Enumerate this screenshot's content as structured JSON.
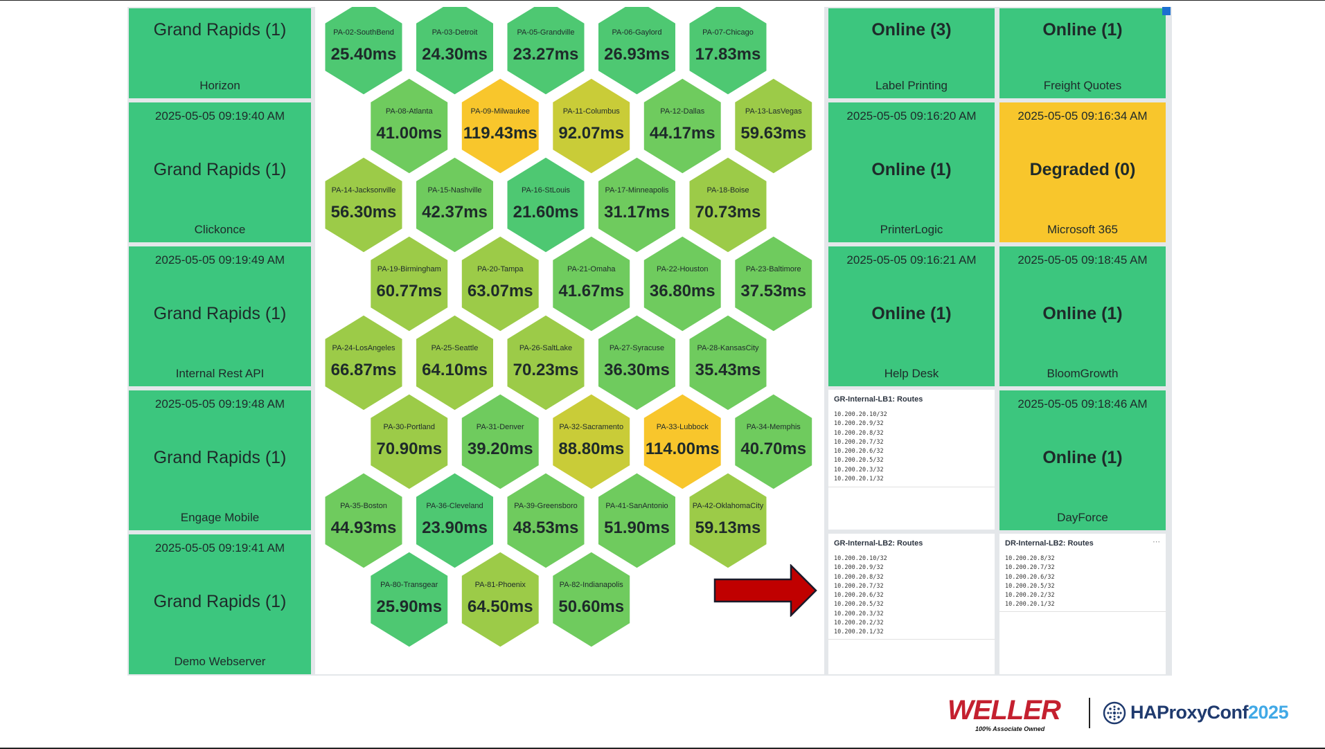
{
  "colors": {
    "green": "#3cc67e",
    "yellow": "#f8c62c",
    "panel_bg": "#e4e7ea",
    "hex_green": "#4ec872",
    "hex_lightgreen": "#6fcb5e",
    "hex_yellowgreen": "#9ccb48",
    "hex_olive": "#c9cc38",
    "hex_yellow": "#f8c62c",
    "arrow_red": "#c00000"
  },
  "left_tiles": [
    {
      "timestamp": "",
      "status": "Grand Rapids (1)",
      "label": "Horizon"
    },
    {
      "timestamp": "2025-05-05 09:19:40 AM",
      "status": "Grand Rapids (1)",
      "label": "Clickonce"
    },
    {
      "timestamp": "2025-05-05 09:19:49 AM",
      "status": "Grand Rapids (1)",
      "label": "Internal Rest API"
    },
    {
      "timestamp": "2025-05-05 09:19:48 AM",
      "status": "Grand Rapids (1)",
      "label": "Engage Mobile"
    },
    {
      "timestamp": "2025-05-05 09:19:41 AM",
      "status": "Grand Rapids (1)",
      "label": "Demo Webserver"
    }
  ],
  "hexes": [
    {
      "name": "PA-02-SouthBend",
      "value": "25.40ms",
      "level": "green"
    },
    {
      "name": "PA-03-Detroit",
      "value": "24.30ms",
      "level": "green"
    },
    {
      "name": "PA-05-Grandville",
      "value": "23.27ms",
      "level": "green"
    },
    {
      "name": "PA-06-Gaylord",
      "value": "26.93ms",
      "level": "green"
    },
    {
      "name": "PA-07-Chicago",
      "value": "17.83ms",
      "level": "green"
    },
    {
      "name": "PA-08-Atlanta",
      "value": "41.00ms",
      "level": "lightgreen"
    },
    {
      "name": "PA-09-Milwaukee",
      "value": "119.43ms",
      "level": "yellow"
    },
    {
      "name": "PA-11-Columbus",
      "value": "92.07ms",
      "level": "olive"
    },
    {
      "name": "PA-12-Dallas",
      "value": "44.17ms",
      "level": "lightgreen"
    },
    {
      "name": "PA-13-LasVegas",
      "value": "59.63ms",
      "level": "yellowgreen"
    },
    {
      "name": "PA-14-Jacksonville",
      "value": "56.30ms",
      "level": "yellowgreen"
    },
    {
      "name": "PA-15-Nashville",
      "value": "42.37ms",
      "level": "lightgreen"
    },
    {
      "name": "PA-16-StLouis",
      "value": "21.60ms",
      "level": "green"
    },
    {
      "name": "PA-17-Minneapolis",
      "value": "31.17ms",
      "level": "lightgreen"
    },
    {
      "name": "PA-18-Boise",
      "value": "70.73ms",
      "level": "yellowgreen"
    },
    {
      "name": "PA-19-Birmingham",
      "value": "60.77ms",
      "level": "yellowgreen"
    },
    {
      "name": "PA-20-Tampa",
      "value": "63.07ms",
      "level": "yellowgreen"
    },
    {
      "name": "PA-21-Omaha",
      "value": "41.67ms",
      "level": "lightgreen"
    },
    {
      "name": "PA-22-Houston",
      "value": "36.80ms",
      "level": "lightgreen"
    },
    {
      "name": "PA-23-Baltimore",
      "value": "37.53ms",
      "level": "lightgreen"
    },
    {
      "name": "PA-24-LosAngeles",
      "value": "66.87ms",
      "level": "yellowgreen"
    },
    {
      "name": "PA-25-Seattle",
      "value": "64.10ms",
      "level": "yellowgreen"
    },
    {
      "name": "PA-26-SaltLake",
      "value": "70.23ms",
      "level": "yellowgreen"
    },
    {
      "name": "PA-27-Syracuse",
      "value": "36.30ms",
      "level": "lightgreen"
    },
    {
      "name": "PA-28-KansasCity",
      "value": "35.43ms",
      "level": "lightgreen"
    },
    {
      "name": "PA-30-Portland",
      "value": "70.90ms",
      "level": "yellowgreen"
    },
    {
      "name": "PA-31-Denver",
      "value": "39.20ms",
      "level": "lightgreen"
    },
    {
      "name": "PA-32-Sacramento",
      "value": "88.80ms",
      "level": "olive"
    },
    {
      "name": "PA-33-Lubbock",
      "value": "114.00ms",
      "level": "yellow"
    },
    {
      "name": "PA-34-Memphis",
      "value": "40.70ms",
      "level": "lightgreen"
    },
    {
      "name": "PA-35-Boston",
      "value": "44.93ms",
      "level": "lightgreen"
    },
    {
      "name": "PA-36-Cleveland",
      "value": "23.90ms",
      "level": "green"
    },
    {
      "name": "PA-39-Greensboro",
      "value": "48.53ms",
      "level": "lightgreen"
    },
    {
      "name": "PA-41-SanAntonio",
      "value": "51.90ms",
      "level": "lightgreen"
    },
    {
      "name": "PA-42-OklahomaCity",
      "value": "59.13ms",
      "level": "yellowgreen"
    },
    {
      "name": "PA-80-Transgear",
      "value": "25.90ms",
      "level": "green"
    },
    {
      "name": "PA-81-Phoenix",
      "value": "64.50ms",
      "level": "yellowgreen"
    },
    {
      "name": "PA-82-Indianapolis",
      "value": "50.60ms",
      "level": "lightgreen"
    }
  ],
  "right_col1": [
    {
      "timestamp": "",
      "status": "Online (3)",
      "label": "Label Printing"
    },
    {
      "timestamp": "2025-05-05 09:16:20 AM",
      "status": "Online (1)",
      "label": "PrinterLogic"
    },
    {
      "timestamp": "2025-05-05 09:16:21 AM",
      "status": "Online (1)",
      "label": "Help Desk"
    }
  ],
  "right_col2": [
    {
      "timestamp": "",
      "status": "Online (1)",
      "label": "Freight Quotes"
    },
    {
      "timestamp": "2025-05-05 09:16:34 AM",
      "status": "Degraded (0)",
      "label": "Microsoft 365"
    },
    {
      "timestamp": "2025-05-05 09:18:45 AM",
      "status": "Online (1)",
      "label": "BloomGrowth"
    },
    {
      "timestamp": "2025-05-05 09:18:46 AM",
      "status": "Online (1)",
      "label": "DayForce"
    }
  ],
  "routes": [
    {
      "title": "GR-Internal-LB1: Routes",
      "items": [
        "10.200.20.10/32",
        "10.200.20.9/32",
        "10.200.20.8/32",
        "10.200.20.7/32",
        "10.200.20.6/32",
        "10.200.20.5/32",
        "10.200.20.3/32",
        "10.200.20.1/32"
      ]
    },
    {
      "title": "GR-Internal-LB2: Routes",
      "items": [
        "10.200.20.10/32",
        "10.200.20.9/32",
        "10.200.20.8/32",
        "10.200.20.7/32",
        "10.200.20.6/32",
        "10.200.20.5/32",
        "10.200.20.3/32",
        "10.200.20.2/32",
        "10.200.20.1/32"
      ]
    },
    {
      "title": "DR-Internal-LB2: Routes",
      "items": [
        "10.200.20.8/32",
        "10.200.20.7/32",
        "10.200.20.6/32",
        "10.200.20.5/32",
        "10.200.20.2/32",
        "10.200.20.1/32"
      ]
    }
  ],
  "footer": {
    "weller": "WELLER",
    "weller_sub": "100% Associate Owned",
    "haproxy": "HAProxyConf",
    "haproxy_year": "2025"
  }
}
